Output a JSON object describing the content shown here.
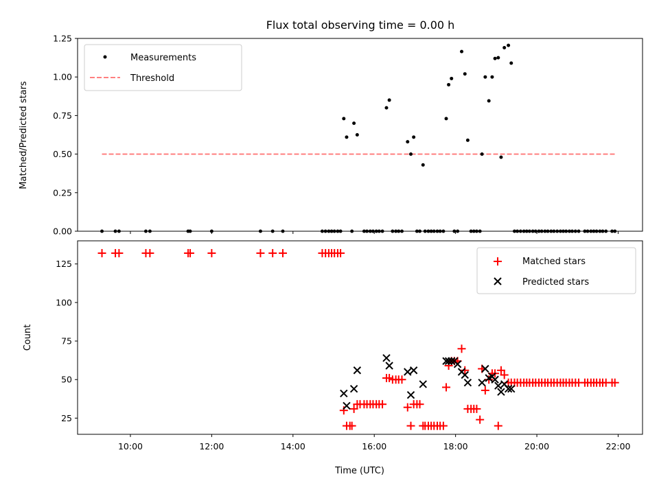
{
  "chart_data": [
    {
      "type": "scatter",
      "title": "Flux total observing time = 0.00 h",
      "xlabel": "",
      "ylabel": "Matched/Predicted stars",
      "ylim": [
        0,
        1.25
      ],
      "yticks": [
        "0.00",
        "0.25",
        "0.50",
        "0.75",
        "1.00",
        "1.25"
      ],
      "xlim": [
        8.7,
        22.6
      ],
      "legend_position": "top-left",
      "series": [
        {
          "name": "Measurements",
          "color": "#000000",
          "marker": "dot",
          "x": [
            9.3,
            9.63,
            9.72,
            10.38,
            10.48,
            11.42,
            11.47,
            12.0,
            13.2,
            13.5,
            13.75,
            14.72,
            14.8,
            14.88,
            14.95,
            15.02,
            15.1,
            15.17,
            15.25,
            15.32,
            15.45,
            15.5,
            15.58,
            15.75,
            15.82,
            15.9,
            15.97,
            16.05,
            16.12,
            16.2,
            16.3,
            16.37,
            16.45,
            16.53,
            16.6,
            16.68,
            16.82,
            16.9,
            16.97,
            17.05,
            17.12,
            17.2,
            17.25,
            17.33,
            17.4,
            17.47,
            17.55,
            17.62,
            17.7,
            17.77,
            17.83,
            17.9,
            17.97,
            18.05,
            18.15,
            18.23,
            18.3,
            18.38,
            18.45,
            18.52,
            18.6,
            18.65,
            18.73,
            18.82,
            18.9,
            18.97,
            19.05,
            19.12,
            19.2,
            19.3,
            19.37,
            19.45,
            19.52,
            19.6,
            19.68,
            19.75,
            19.82,
            19.9,
            19.97,
            20.05,
            20.12,
            20.2,
            20.27,
            20.35,
            20.42,
            20.5,
            20.58,
            20.65,
            20.72,
            20.8,
            20.87,
            20.95,
            21.03,
            21.18,
            21.25,
            21.33,
            21.4,
            21.47,
            21.55,
            21.62,
            21.7,
            21.85,
            21.92
          ],
          "y": [
            0,
            0,
            0,
            0,
            0,
            0,
            0,
            0,
            0,
            0,
            0,
            0,
            0,
            0,
            0,
            0,
            0,
            0,
            0.73,
            0.61,
            0,
            0.7,
            0.625,
            0,
            0,
            0,
            0,
            0,
            0,
            0,
            0.8,
            0.85,
            0,
            0,
            0,
            0,
            0.58,
            0.5,
            0.61,
            0,
            0,
            0.43,
            0,
            0,
            0,
            0,
            0,
            0,
            0,
            0.73,
            0.95,
            0.99,
            0,
            0,
            1.165,
            1.02,
            0.59,
            0,
            0,
            0,
            0,
            0.5,
            1.0,
            0.845,
            1.0,
            1.12,
            1.125,
            0.48,
            1.19,
            1.205,
            1.09,
            0,
            0,
            0,
            0,
            0,
            0,
            0,
            0,
            0,
            0,
            0,
            0,
            0,
            0,
            0,
            0,
            0,
            0,
            0,
            0,
            0,
            0,
            0,
            0,
            0,
            0,
            0,
            0,
            0,
            0,
            0,
            0
          ]
        },
        {
          "name": "Threshold",
          "color": "#ff7f7f",
          "style": "dashed",
          "x": [
            9.3,
            21.92
          ],
          "y": [
            0.5,
            0.5
          ]
        }
      ]
    },
    {
      "type": "scatter",
      "title": "",
      "xlabel": "Time (UTC)",
      "ylabel": "Count",
      "ylim": [
        14.5,
        140
      ],
      "yticks": [
        "25",
        "50",
        "75",
        "100",
        "125"
      ],
      "xlim": [
        8.7,
        22.6
      ],
      "xticks": [
        "10:00",
        "12:00",
        "14:00",
        "16:00",
        "18:00",
        "20:00",
        "22:00"
      ],
      "legend_position": "top-right",
      "series": [
        {
          "name": "Matched stars",
          "color": "#ff0000",
          "marker": "plus",
          "x": [
            9.3,
            9.63,
            9.72,
            10.38,
            10.48,
            11.42,
            11.47,
            12.0,
            13.2,
            13.5,
            13.75,
            14.72,
            14.8,
            14.88,
            14.95,
            15.02,
            15.1,
            15.17,
            15.25,
            15.32,
            15.4,
            15.45,
            15.5,
            15.58,
            15.65,
            15.75,
            15.82,
            15.9,
            15.97,
            16.05,
            16.12,
            16.2,
            16.3,
            16.37,
            16.45,
            16.53,
            16.6,
            16.68,
            16.82,
            16.9,
            16.97,
            17.05,
            17.12,
            17.2,
            17.25,
            17.33,
            17.4,
            17.47,
            17.55,
            17.62,
            17.7,
            17.77,
            17.83,
            17.9,
            17.97,
            18.05,
            18.15,
            18.23,
            18.3,
            18.38,
            18.45,
            18.52,
            18.6,
            18.65,
            18.73,
            18.82,
            18.9,
            18.97,
            19.05,
            19.12,
            19.2,
            19.3,
            19.37,
            19.45,
            19.52,
            19.6,
            19.68,
            19.75,
            19.82,
            19.9,
            19.97,
            20.05,
            20.12,
            20.2,
            20.27,
            20.35,
            20.42,
            20.5,
            20.58,
            20.65,
            20.72,
            20.8,
            20.87,
            20.95,
            21.03,
            21.18,
            21.25,
            21.33,
            21.4,
            21.47,
            21.55,
            21.62,
            21.7,
            21.85,
            21.92
          ],
          "y": [
            132,
            132,
            132,
            132,
            132,
            132,
            132,
            132,
            132,
            132,
            132,
            132,
            132,
            132,
            132,
            132,
            132,
            132,
            30,
            20,
            20,
            20,
            31,
            34,
            34,
            34,
            34,
            34,
            34,
            34,
            34,
            34,
            51,
            51,
            50,
            50,
            50,
            50,
            32,
            20,
            34,
            34,
            34,
            20,
            20,
            20,
            20,
            20,
            20,
            20,
            20,
            45,
            59,
            62,
            62,
            62,
            70,
            56,
            31,
            31,
            31,
            31,
            24,
            57,
            43,
            50,
            54,
            54,
            20,
            56,
            53,
            48,
            48,
            48,
            48,
            48,
            48,
            48,
            48,
            48,
            48,
            48,
            48,
            48,
            48,
            48,
            48,
            48,
            48,
            48,
            48,
            48,
            48,
            48,
            48,
            48,
            48,
            48,
            48,
            48,
            48,
            48,
            48,
            48,
            48
          ]
        },
        {
          "name": "Predicted stars",
          "color": "#000000",
          "marker": "x",
          "x": [
            15.25,
            15.32,
            15.5,
            15.58,
            16.3,
            16.37,
            16.82,
            16.9,
            16.97,
            17.2,
            17.77,
            17.83,
            17.9,
            17.97,
            18.05,
            18.15,
            18.23,
            18.3,
            18.65,
            18.73,
            18.82,
            18.9,
            18.97,
            19.05,
            19.12,
            19.2,
            19.3,
            19.37
          ],
          "y": [
            41,
            33,
            44,
            56,
            64,
            59,
            55,
            40,
            56,
            47,
            62,
            62,
            62,
            62,
            60,
            55,
            53,
            48,
            48,
            57,
            51,
            52,
            50,
            46,
            42,
            47,
            44,
            44
          ]
        }
      ]
    }
  ]
}
